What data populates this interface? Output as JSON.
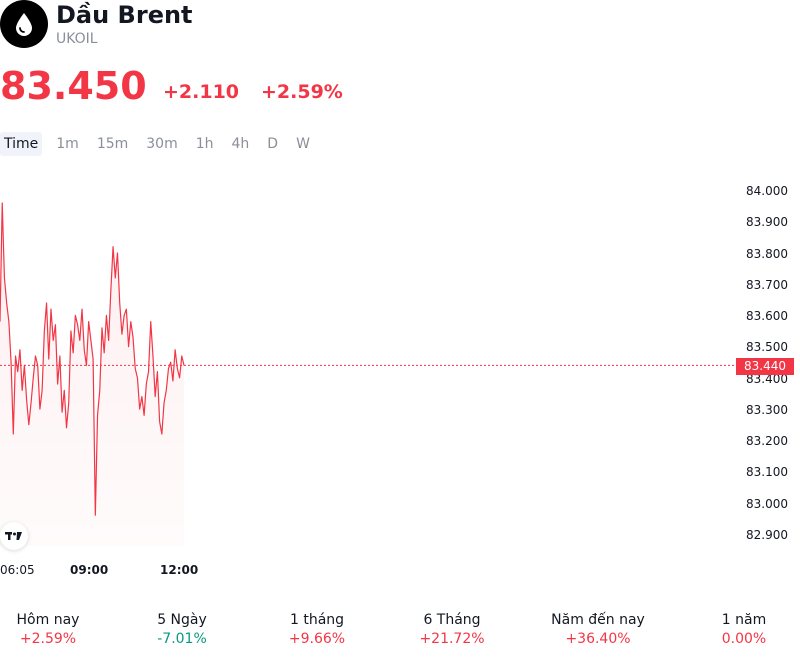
{
  "header": {
    "title": "Dầu Brent",
    "symbol": "UKOIL",
    "icon": "oil-drop-icon"
  },
  "quote": {
    "price": "83.450",
    "change": "+2.110",
    "change_pct": "+2.59%",
    "current_marker": "83.440"
  },
  "timeframes": [
    {
      "label": "Time",
      "active": true
    },
    {
      "label": "1m",
      "active": false
    },
    {
      "label": "15m",
      "active": false
    },
    {
      "label": "30m",
      "active": false
    },
    {
      "label": "1h",
      "active": false
    },
    {
      "label": "4h",
      "active": false
    },
    {
      "label": "D",
      "active": false
    },
    {
      "label": "W",
      "active": false
    }
  ],
  "chart_data": {
    "type": "area",
    "x_ticks": [
      "06:05",
      "09:00",
      "12:00"
    ],
    "y_ticks": [
      "84.000",
      "83.900",
      "83.800",
      "83.700",
      "83.600",
      "83.500",
      "83.400",
      "83.300",
      "83.200",
      "83.100",
      "83.000",
      "82.900"
    ],
    "ylim": [
      82.9,
      84.0
    ],
    "current_value": 83.44,
    "series": [
      {
        "values": [
          83.58,
          83.96,
          83.72,
          83.64,
          83.58,
          83.45,
          83.22,
          83.47,
          83.42,
          83.49,
          83.36,
          83.44,
          83.33,
          83.25,
          83.32,
          83.4,
          83.47,
          83.44,
          83.3,
          83.36,
          83.55,
          83.64,
          83.46,
          83.62,
          83.52,
          83.57,
          83.38,
          83.47,
          83.29,
          83.36,
          83.24,
          83.32,
          83.55,
          83.48,
          83.6,
          83.57,
          83.52,
          83.62,
          83.49,
          83.44,
          83.58,
          83.52,
          83.46,
          82.96,
          83.28,
          83.36,
          83.56,
          83.48,
          83.6,
          83.52,
          83.68,
          83.82,
          83.72,
          83.8,
          83.64,
          83.54,
          83.6,
          83.62,
          83.5,
          83.58,
          83.53,
          83.43,
          83.4,
          83.3,
          83.34,
          83.28,
          83.38,
          83.42,
          83.58,
          83.47,
          83.34,
          83.42,
          83.26,
          83.22,
          83.32,
          83.36,
          83.43,
          83.45,
          83.39,
          83.49,
          83.43,
          83.4,
          83.47,
          83.44
        ]
      }
    ]
  },
  "performance": [
    {
      "label": "Hôm nay",
      "value": "+2.59%",
      "direction": "up"
    },
    {
      "label": "5 Ngày",
      "value": "-7.01%",
      "direction": "down"
    },
    {
      "label": "1 tháng",
      "value": "+9.66%",
      "direction": "up"
    },
    {
      "label": "6 Tháng",
      "value": "+21.72%",
      "direction": "up"
    },
    {
      "label": "Năm đến nay",
      "value": "+36.40%",
      "direction": "up"
    },
    {
      "label": "1 năm",
      "value": "0.00%",
      "direction": "flat"
    }
  ],
  "colors": {
    "up": "#f23645",
    "down": "#089981",
    "flat": "#f23645"
  }
}
